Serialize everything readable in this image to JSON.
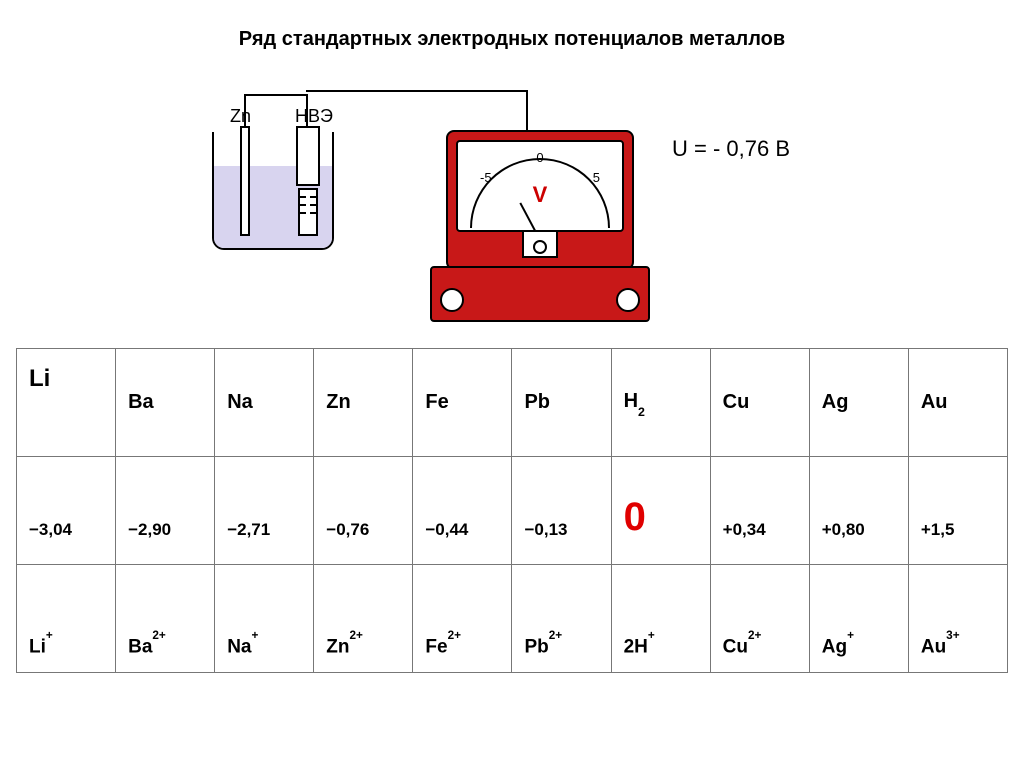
{
  "title": "Ряд стандартных  электродных потенциалов      металлов",
  "diagram": {
    "zn_label": "Zn",
    "hve_label": "НВЭ",
    "scale_left": "-5",
    "scale_center": "0",
    "scale_right": "5",
    "v_letter": "V",
    "voltage": "U = - 0,76 В",
    "colors": {
      "meter_red": "#c81818",
      "liquid": "#d8d4ef",
      "v_letter": "#c00000"
    }
  },
  "table": {
    "highlight_color": "#e00000",
    "text_color": "#000000",
    "border_color": "#777777",
    "elements": [
      {
        "sym": "Li",
        "pot": "−3,04",
        "ion": "Li",
        "charge": "+",
        "hl": false
      },
      {
        "sym": "Ba",
        "pot": "−2,90",
        "ion": "Ba",
        "charge": "2+",
        "hl": false
      },
      {
        "sym": "Na",
        "pot": "−2,71",
        "ion": "Na",
        "charge": "+",
        "hl": false
      },
      {
        "sym": "Zn",
        "pot": "−0,76",
        "ion": "Zn",
        "charge": "2+",
        "hl": false
      },
      {
        "sym": "Fe",
        "pot": "−0,44",
        "ion": "Fe",
        "charge": "2+",
        "hl": false
      },
      {
        "sym": "Pb",
        "pot": "−0,13",
        "ion": "Pb",
        "charge": "2+",
        "hl": false
      },
      {
        "sym": "H₂",
        "pot": "0",
        "ion": "2H",
        "charge": "+",
        "hl": true
      },
      {
        "sym": "Cu",
        "pot": "+0,34",
        "ion": "Cu",
        "charge": "2+",
        "hl": false
      },
      {
        "sym": "Ag",
        "pot": "+0,80",
        "ion": "Ag",
        "charge": "+",
        "hl": false
      },
      {
        "sym": "Au",
        "pot": "+1,5",
        "ion": "Au",
        "charge": "3+",
        "hl": false
      }
    ]
  }
}
